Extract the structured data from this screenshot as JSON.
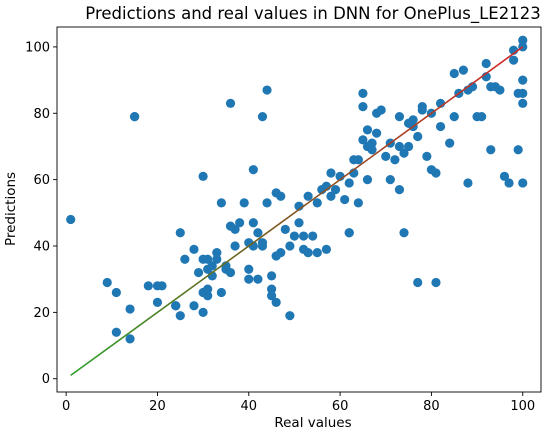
{
  "chart_data": {
    "type": "scatter",
    "title": "Predictions and real values in DNN for OnePlus_LE2123",
    "xlabel": "Real values",
    "ylabel": "Predictions",
    "xlim": [
      -2,
      104
    ],
    "ylim": [
      -4,
      106
    ],
    "xticks": [
      0,
      20,
      40,
      60,
      80,
      100
    ],
    "yticks": [
      0,
      20,
      40,
      60,
      80,
      100
    ],
    "grid": false,
    "colors": {
      "points": "#1f77b4",
      "fit_line": "#d62728",
      "fit_line_start": "#2ca02c"
    },
    "series": [
      {
        "x": [
          1,
          9,
          11,
          11,
          14,
          14,
          15,
          18,
          20,
          20,
          21,
          24,
          25,
          25,
          26,
          28,
          28,
          29,
          30,
          30,
          30,
          31,
          31,
          31,
          31,
          32,
          32,
          33,
          34,
          34,
          35,
          36,
          36,
          37,
          37,
          38,
          39,
          40,
          40,
          40,
          41,
          41,
          42,
          42,
          43,
          43,
          44,
          44,
          45,
          45,
          45,
          46,
          46,
          46,
          47,
          47,
          48,
          49,
          49,
          50,
          51,
          51,
          52,
          52,
          53,
          53,
          54,
          55,
          55,
          56,
          57,
          57,
          58,
          58,
          59,
          60,
          61,
          62,
          62,
          63,
          63,
          64,
          64,
          65,
          65,
          65,
          66,
          66,
          66,
          67,
          67,
          68,
          68,
          69,
          70,
          71,
          71,
          72,
          73,
          73,
          73,
          74,
          74,
          75,
          75,
          76,
          76,
          77,
          77,
          78,
          78,
          79,
          80,
          80,
          81,
          81,
          82,
          82,
          84,
          85,
          85,
          86,
          87,
          88,
          88,
          89,
          90,
          91,
          92,
          92,
          93,
          93,
          94,
          95,
          96,
          97,
          98,
          98,
          99,
          99,
          100,
          100,
          100,
          100,
          100,
          100,
          36,
          43,
          15,
          62,
          30,
          33,
          41,
          35,
          24
        ],
        "y": [
          48,
          29,
          26,
          14,
          21,
          12,
          79,
          28,
          23,
          28,
          28,
          22,
          19,
          44,
          36,
          39,
          22,
          32,
          20,
          61,
          26,
          25,
          33,
          36,
          27,
          31,
          34,
          38,
          26,
          53,
          33,
          32,
          83,
          40,
          45,
          47,
          53,
          41,
          30,
          33,
          47,
          63,
          44,
          30,
          79,
          40,
          87,
          53,
          25,
          31,
          27,
          23,
          37,
          56,
          38,
          55,
          45,
          19,
          40,
          43,
          52,
          47,
          43,
          39,
          38,
          55,
          43,
          38,
          53,
          57,
          39,
          58,
          62,
          55,
          57,
          61,
          54,
          44,
          59,
          62,
          66,
          53,
          66,
          82,
          72,
          86,
          70,
          60,
          75,
          71,
          69,
          80,
          74,
          81,
          67,
          71,
          60,
          66,
          57,
          70,
          79,
          68,
          44,
          70,
          77,
          76,
          78,
          73,
          29,
          81,
          82,
          67,
          80,
          63,
          29,
          62,
          76,
          83,
          71,
          92,
          79,
          86,
          93,
          87,
          59,
          88,
          79,
          79,
          95,
          91,
          69,
          88,
          88,
          87,
          61,
          59,
          99,
          96,
          86,
          69,
          100,
          102,
          83,
          90,
          86,
          59,
          46,
          41,
          79,
          44,
          36,
          36,
          40,
          34,
          22
        ]
      }
    ],
    "fit_line": {
      "x": [
        1,
        100
      ],
      "y": [
        1,
        100
      ]
    }
  }
}
